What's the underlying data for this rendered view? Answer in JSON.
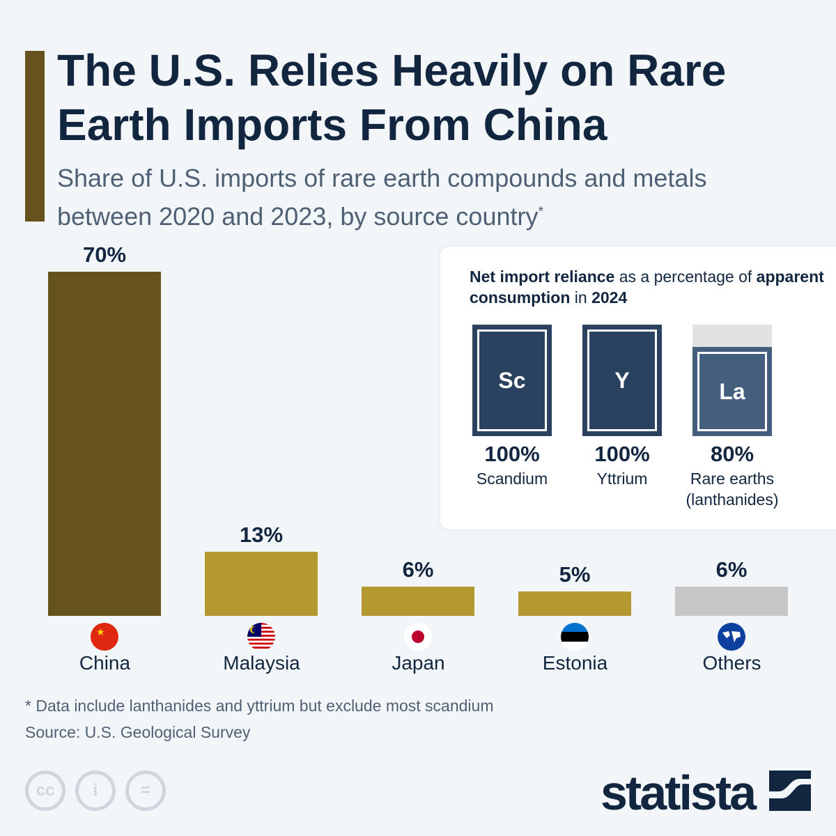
{
  "header": {
    "title": "The U.S. Relies Heavily on Rare Earth Imports From China",
    "subtitle": "Share of U.S. imports of rare earth compounds and metals between 2020 and 2023, by source country",
    "subtitle_mark": "*"
  },
  "chart_data": {
    "type": "bar",
    "categories": [
      "China",
      "Malaysia",
      "Japan",
      "Estonia",
      "Others"
    ],
    "values": [
      70,
      13,
      6,
      5,
      6
    ],
    "value_labels": [
      "70%",
      "13%",
      "6%",
      "5%",
      "6%"
    ],
    "unit": "%",
    "colors": [
      "#65521c",
      "#b3992f",
      "#b3992f",
      "#b3992f",
      "#c6c6c6"
    ],
    "icons": [
      "flag-china-icon",
      "flag-malaysia-icon",
      "flag-japan-icon",
      "flag-estonia-icon",
      "globe-icon"
    ],
    "grid": false
  },
  "panel": {
    "title_parts": [
      "Net import reliance",
      " as a percentage of ",
      "apparent consumption",
      " in ",
      "2024"
    ],
    "items": [
      {
        "symbol": "Sc",
        "pct": "100%",
        "value": 100,
        "name": "Scandium",
        "color": "#2b4160"
      },
      {
        "symbol": "Y",
        "pct": "100%",
        "value": 100,
        "name": "Yttrium",
        "color": "#2b4160"
      },
      {
        "symbol": "La",
        "pct": "80%",
        "value": 80,
        "name": "Rare earths (lanthanides)",
        "color": "#465e7e"
      }
    ]
  },
  "footer": {
    "note": "* Data include lanthanides and yttrium but exclude most scandium",
    "source": "Source: U.S. Geological Survey",
    "brand": "statista",
    "license_icons": [
      "cc",
      "i",
      "="
    ]
  }
}
